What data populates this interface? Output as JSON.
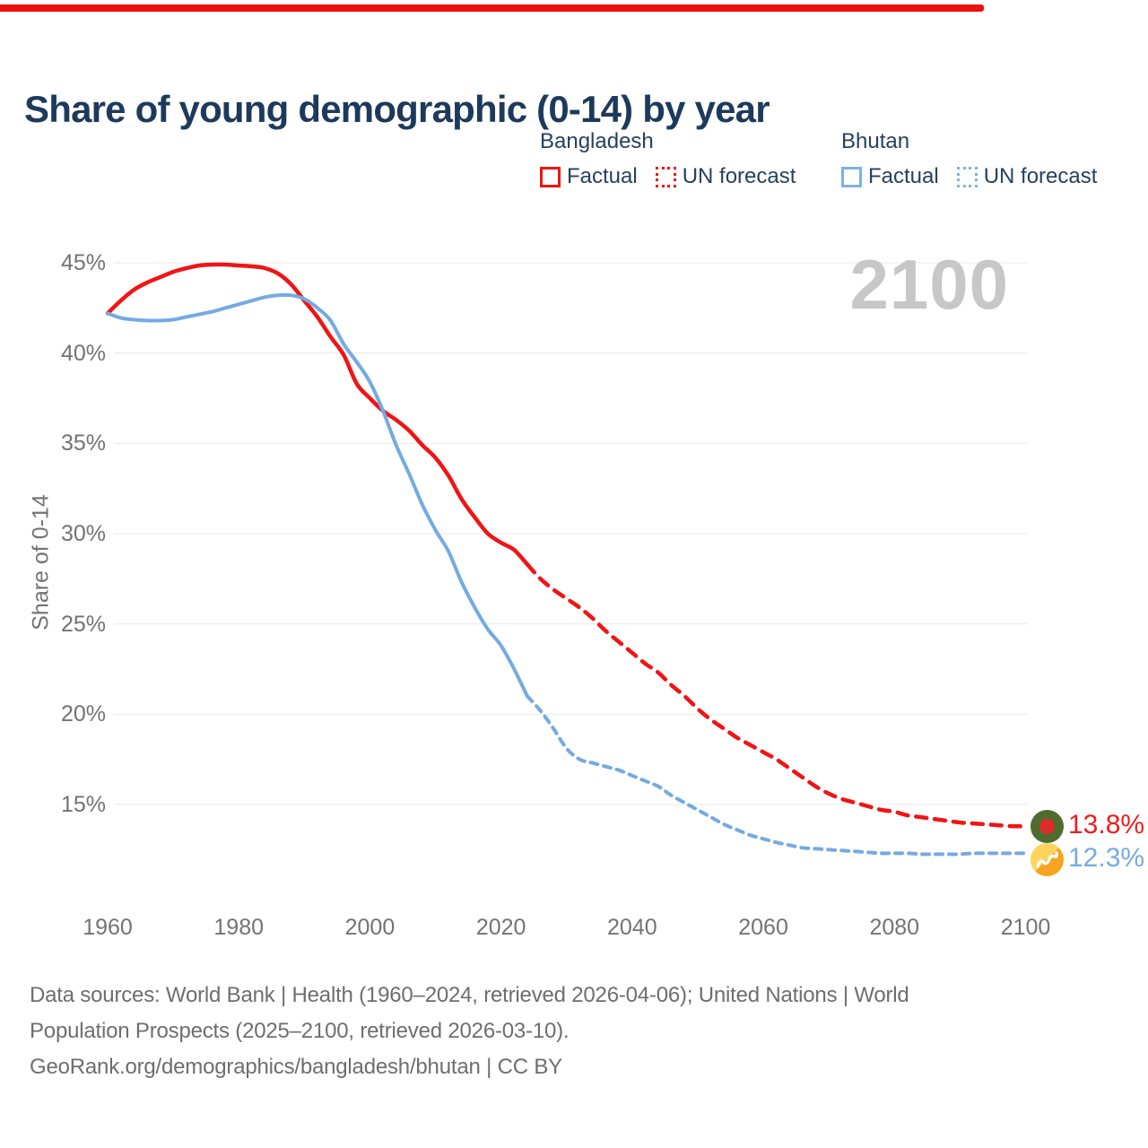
{
  "page": {
    "title": "Share of young demographic (0-14) by year",
    "progress_bar_color": "#ee0f0f",
    "background_color": "#ffffff",
    "title_color": "#1d3a5c"
  },
  "legend": {
    "text_color": "#27405e",
    "groups": [
      {
        "country": "Bangladesh",
        "color": "#f01414",
        "items": [
          {
            "label": "Factual",
            "line_style": "solid"
          },
          {
            "label": "UN forecast",
            "line_style": "dashed"
          }
        ]
      },
      {
        "country": "Bhutan",
        "color": "#7db1e8",
        "items": [
          {
            "label": "Factual",
            "line_style": "solid"
          },
          {
            "label": "UN forecast",
            "line_style": "dashed"
          }
        ]
      }
    ]
  },
  "watermark": {
    "text": "2100",
    "color": "#c7c7c7"
  },
  "axes": {
    "y_label": "Share of 0-14",
    "tick_color": "#737373",
    "gridline_color": "#e9e9e9",
    "y_ticks": [
      {
        "value": 45,
        "label": "45%"
      },
      {
        "value": 40,
        "label": "40%"
      },
      {
        "value": 35,
        "label": "35%"
      },
      {
        "value": 30,
        "label": "30%"
      },
      {
        "value": 25,
        "label": "25%"
      },
      {
        "value": 20,
        "label": "20%"
      },
      {
        "value": 15,
        "label": "15%"
      }
    ],
    "x_ticks": [
      {
        "value": 1960,
        "label": "1960"
      },
      {
        "value": 1980,
        "label": "1980"
      },
      {
        "value": 2000,
        "label": "2000"
      },
      {
        "value": 2020,
        "label": "2020"
      },
      {
        "value": 2040,
        "label": "2040"
      },
      {
        "value": 2060,
        "label": "2060"
      },
      {
        "value": 2080,
        "label": "2080"
      },
      {
        "value": 2100,
        "label": "2100"
      }
    ]
  },
  "end_labels": [
    {
      "country": "Bangladesh",
      "value": "13.8%",
      "color": "#f11c1c",
      "flag": "bangladesh-flag-icon",
      "flag_colors": {
        "field": "#4f6b2e",
        "disc": "#dd2c2c"
      }
    },
    {
      "country": "Bhutan",
      "value": "12.3%",
      "color": "#74abe2",
      "flag": "bhutan-flag-icon",
      "flag_colors": {
        "upper": "#ffd45c",
        "lower": "#f7a41f",
        "dragon": "#ffffff"
      }
    }
  ],
  "footer": {
    "color": "#6e6e6e",
    "lines": [
      "Data sources: World Bank | Health (1960–2024, retrieved 2026-04-06); United Nations | World",
      "Population Prospects (2025–2100, retrieved 2026-03-10).",
      "GeoRank.org/demographics/bangladesh/bhutan | CC BY"
    ]
  },
  "chart_data": {
    "type": "line",
    "title": "Share of young demographic (0-14) by year",
    "xlabel": "",
    "ylabel": "Share of 0-14",
    "units": "percent",
    "x_range": [
      1960,
      2100
    ],
    "ylim": [
      15,
      45
    ],
    "grid": "horizontal",
    "legend_position": "top-right",
    "series": [
      {
        "id": "bangladesh-factual",
        "name": "Bangladesh — Factual",
        "country": "Bangladesh",
        "segment": "factual",
        "color": "#f01414",
        "line_style": "solid",
        "width": 4.5,
        "dash": "none",
        "points": [
          [
            1960,
            42.2
          ],
          [
            1962,
            42.9
          ],
          [
            1964,
            43.5
          ],
          [
            1966,
            43.9
          ],
          [
            1968,
            44.2
          ],
          [
            1970,
            44.5
          ],
          [
            1972,
            44.7
          ],
          [
            1974,
            44.85
          ],
          [
            1976,
            44.9
          ],
          [
            1978,
            44.9
          ],
          [
            1980,
            44.85
          ],
          [
            1982,
            44.8
          ],
          [
            1984,
            44.7
          ],
          [
            1986,
            44.4
          ],
          [
            1988,
            43.8
          ],
          [
            1990,
            42.9
          ],
          [
            1992,
            42.0
          ],
          [
            1994,
            40.9
          ],
          [
            1996,
            39.9
          ],
          [
            1998,
            38.3
          ],
          [
            2000,
            37.5
          ],
          [
            2002,
            36.8
          ],
          [
            2004,
            36.3
          ],
          [
            2006,
            35.7
          ],
          [
            2008,
            34.9
          ],
          [
            2010,
            34.2
          ],
          [
            2012,
            33.2
          ],
          [
            2014,
            31.9
          ],
          [
            2016,
            30.9
          ],
          [
            2018,
            30.0
          ],
          [
            2020,
            29.5
          ],
          [
            2022,
            29.1
          ],
          [
            2024,
            28.3
          ]
        ]
      },
      {
        "id": "bangladesh-forecast",
        "name": "Bangladesh — UN forecast",
        "country": "Bangladesh",
        "segment": "forecast",
        "color": "#f01414",
        "line_style": "dashed",
        "width": 4.5,
        "dash": "12 9",
        "points": [
          [
            2024,
            28.3
          ],
          [
            2026,
            27.5
          ],
          [
            2028,
            26.9
          ],
          [
            2030,
            26.4
          ],
          [
            2032,
            25.9
          ],
          [
            2034,
            25.3
          ],
          [
            2036,
            24.6
          ],
          [
            2038,
            24.0
          ],
          [
            2040,
            23.4
          ],
          [
            2042,
            22.8
          ],
          [
            2044,
            22.3
          ],
          [
            2046,
            21.6
          ],
          [
            2048,
            21.0
          ],
          [
            2050,
            20.3
          ],
          [
            2052,
            19.7
          ],
          [
            2054,
            19.2
          ],
          [
            2056,
            18.7
          ],
          [
            2058,
            18.3
          ],
          [
            2060,
            17.9
          ],
          [
            2062,
            17.5
          ],
          [
            2064,
            17.0
          ],
          [
            2066,
            16.5
          ],
          [
            2068,
            16.0
          ],
          [
            2070,
            15.6
          ],
          [
            2072,
            15.3
          ],
          [
            2074,
            15.1
          ],
          [
            2076,
            14.9
          ],
          [
            2078,
            14.7
          ],
          [
            2080,
            14.6
          ],
          [
            2082,
            14.4
          ],
          [
            2084,
            14.3
          ],
          [
            2086,
            14.2
          ],
          [
            2088,
            14.1
          ],
          [
            2090,
            14.0
          ],
          [
            2092,
            13.95
          ],
          [
            2094,
            13.9
          ],
          [
            2096,
            13.85
          ],
          [
            2098,
            13.8
          ],
          [
            2100,
            13.8
          ]
        ]
      },
      {
        "id": "bhutan-factual",
        "name": "Bhutan — Factual",
        "country": "Bhutan",
        "segment": "factual",
        "color": "#74aae2",
        "line_style": "solid",
        "width": 4,
        "dash": "none",
        "points": [
          [
            1960,
            42.2
          ],
          [
            1962,
            41.95
          ],
          [
            1964,
            41.85
          ],
          [
            1966,
            41.8
          ],
          [
            1968,
            41.8
          ],
          [
            1970,
            41.85
          ],
          [
            1972,
            42.0
          ],
          [
            1974,
            42.15
          ],
          [
            1976,
            42.3
          ],
          [
            1978,
            42.5
          ],
          [
            1980,
            42.7
          ],
          [
            1982,
            42.9
          ],
          [
            1984,
            43.1
          ],
          [
            1986,
            43.2
          ],
          [
            1988,
            43.2
          ],
          [
            1990,
            43.0
          ],
          [
            1992,
            42.5
          ],
          [
            1994,
            41.8
          ],
          [
            1996,
            40.5
          ],
          [
            1998,
            39.5
          ],
          [
            2000,
            38.4
          ],
          [
            2002,
            36.8
          ],
          [
            2004,
            34.9
          ],
          [
            2006,
            33.3
          ],
          [
            2008,
            31.6
          ],
          [
            2010,
            30.2
          ],
          [
            2012,
            29.0
          ],
          [
            2014,
            27.3
          ],
          [
            2016,
            25.9
          ],
          [
            2018,
            24.7
          ],
          [
            2020,
            23.8
          ],
          [
            2022,
            22.5
          ],
          [
            2024,
            21.0
          ]
        ]
      },
      {
        "id": "bhutan-forecast",
        "name": "Bhutan — UN forecast",
        "country": "Bhutan",
        "segment": "forecast",
        "color": "#74aae2",
        "line_style": "dashed",
        "width": 4,
        "dash": "8 7",
        "points": [
          [
            2024,
            21.0
          ],
          [
            2026,
            20.2
          ],
          [
            2028,
            19.2
          ],
          [
            2030,
            18.1
          ],
          [
            2032,
            17.5
          ],
          [
            2034,
            17.3
          ],
          [
            2036,
            17.1
          ],
          [
            2038,
            16.9
          ],
          [
            2040,
            16.6
          ],
          [
            2042,
            16.3
          ],
          [
            2044,
            16.0
          ],
          [
            2046,
            15.5
          ],
          [
            2048,
            15.1
          ],
          [
            2050,
            14.7
          ],
          [
            2052,
            14.3
          ],
          [
            2054,
            13.9
          ],
          [
            2056,
            13.6
          ],
          [
            2058,
            13.3
          ],
          [
            2060,
            13.1
          ],
          [
            2062,
            12.9
          ],
          [
            2064,
            12.75
          ],
          [
            2066,
            12.6
          ],
          [
            2068,
            12.55
          ],
          [
            2070,
            12.5
          ],
          [
            2072,
            12.45
          ],
          [
            2074,
            12.4
          ],
          [
            2076,
            12.35
          ],
          [
            2078,
            12.3
          ],
          [
            2080,
            12.3
          ],
          [
            2082,
            12.3
          ],
          [
            2084,
            12.25
          ],
          [
            2086,
            12.25
          ],
          [
            2088,
            12.25
          ],
          [
            2090,
            12.25
          ],
          [
            2092,
            12.3
          ],
          [
            2094,
            12.3
          ],
          [
            2096,
            12.3
          ],
          [
            2098,
            12.3
          ],
          [
            2100,
            12.3
          ]
        ]
      }
    ]
  }
}
